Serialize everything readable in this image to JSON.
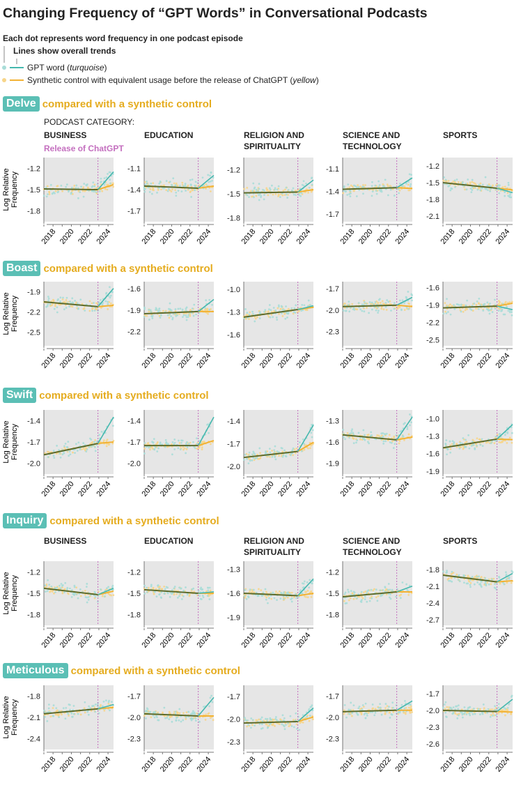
{
  "title": "Changing Frequency of “GPT Words” in Conversational Podcasts",
  "legend": {
    "dots": "Each dot represents word frequency in one podcast episode",
    "lines": "Lines show overall trends",
    "gpt": "GPT word (",
    "gpt_i": "turquoise",
    "control": "Synthetic control with equivalent usage before the release of ChatGPT (",
    "control_i": "yellow",
    "close": ")"
  },
  "category_heading": "PODCAST CATEGORY:",
  "release_label": "Release of ChatGPT",
  "compare_label": "compared with a synthetic control",
  "colors": {
    "gpt": "#45b8ae",
    "control": "#f2b233",
    "shared": "#5d6b2b",
    "release": "#c46fbf",
    "panel": "#e6e6e6"
  },
  "chart_data": {
    "type": "scatter",
    "ylabel": "Log Relative Frequency",
    "categories": [
      "BUSINESS",
      "EDUCATION",
      "RELIGION AND SPIRITUALITY",
      "SCIENCE AND TECHNOLOGY",
      "SPORTS"
    ],
    "xticks": [
      "2018",
      "2020",
      "2022",
      "2024"
    ],
    "xlim": [
      2017,
      2024.6
    ],
    "release_year": 2022.9,
    "rows": [
      {
        "word": "Delve",
        "panels": [
          {
            "yticks": [
              -1.2,
              -1.5,
              -1.8
            ],
            "ylim": [
              -1.95,
              -1.05
            ],
            "pre": [
              -1.49,
              -1.5
            ],
            "gpt_end": -1.25,
            "control_end": -1.43
          },
          {
            "yticks": [
              -1.1,
              -1.4,
              -1.7
            ],
            "ylim": [
              -1.85,
              -0.95
            ],
            "pre": [
              -1.35,
              -1.38
            ],
            "gpt_end": -1.2,
            "control_end": -1.35
          },
          {
            "yticks": [
              -1.2,
              -1.5,
              -1.8
            ],
            "ylim": [
              -1.85,
              -1.05
            ],
            "pre": [
              -1.49,
              -1.48
            ],
            "gpt_end": -1.33,
            "control_end": -1.45
          },
          {
            "yticks": [
              -1.1,
              -1.4,
              -1.7
            ],
            "ylim": [
              -1.8,
              -0.95
            ],
            "pre": [
              -1.37,
              -1.35
            ],
            "gpt_end": -1.22,
            "control_end": -1.36
          },
          {
            "yticks": [
              -1.2,
              -1.5,
              -1.8,
              -2.1
            ],
            "ylim": [
              -2.2,
              -1.05
            ],
            "pre": [
              -1.5,
              -1.6
            ],
            "gpt_end": -1.68,
            "control_end": -1.63
          }
        ]
      },
      {
        "word": "Boast",
        "panels": [
          {
            "yticks": [
              -1.9,
              -2.2,
              -2.5
            ],
            "ylim": [
              -2.7,
              -1.75
            ],
            "pre": [
              -2.05,
              -2.12
            ],
            "gpt_end": -1.85,
            "control_end": -2.1
          },
          {
            "yticks": [
              -1.6,
              -1.9,
              -2.2
            ],
            "ylim": [
              -2.4,
              -1.5
            ],
            "pre": [
              -1.95,
              -1.92
            ],
            "gpt_end": -1.75,
            "control_end": -1.92
          },
          {
            "yticks": [
              -1.0,
              -1.3,
              -1.6
            ],
            "ylim": [
              -1.75,
              -0.9
            ],
            "pre": [
              -1.37,
              -1.27
            ],
            "gpt_end": -1.22,
            "control_end": -1.24
          },
          {
            "yticks": [
              -1.7,
              -2.0,
              -2.3
            ],
            "ylim": [
              -2.5,
              -1.6
            ],
            "pre": [
              -1.95,
              -1.93
            ],
            "gpt_end": -1.82,
            "control_end": -1.95
          },
          {
            "yticks": [
              -1.6,
              -1.9,
              -2.2,
              -2.5
            ],
            "ylim": [
              -2.6,
              -1.5
            ],
            "pre": [
              -1.95,
              -1.92
            ],
            "gpt_end": -1.98,
            "control_end": -1.87
          }
        ]
      },
      {
        "word": "Swift",
        "panels": [
          {
            "yticks": [
              -1.4,
              -1.7,
              -2.0
            ],
            "ylim": [
              -2.15,
              -1.25
            ],
            "pre": [
              -1.88,
              -1.72
            ],
            "gpt_end": -1.35,
            "control_end": -1.7
          },
          {
            "yticks": [
              -1.4,
              -1.7,
              -2.0
            ],
            "ylim": [
              -2.15,
              -1.25
            ],
            "pre": [
              -1.75,
              -1.75
            ],
            "gpt_end": -1.35,
            "control_end": -1.68
          },
          {
            "yticks": [
              -1.4,
              -1.7,
              -2.0
            ],
            "ylim": [
              -2.1,
              -1.25
            ],
            "pre": [
              -1.88,
              -1.8
            ],
            "gpt_end": -1.45,
            "control_end": -1.68
          },
          {
            "yticks": [
              -1.3,
              -1.6,
              -1.9
            ],
            "ylim": [
              -2.05,
              -1.15
            ],
            "pre": [
              -1.5,
              -1.57
            ],
            "gpt_end": -1.25,
            "control_end": -1.53
          },
          {
            "yticks": [
              -1.0,
              -1.3,
              -1.6,
              -1.9
            ],
            "ylim": [
              -1.95,
              -0.85
            ],
            "pre": [
              -1.5,
              -1.35
            ],
            "gpt_end": -1.1,
            "control_end": -1.36
          }
        ]
      },
      {
        "word": "Inquiry",
        "panels": [
          {
            "yticks": [
              -1.2,
              -1.5,
              -1.8
            ],
            "ylim": [
              -1.95,
              -1.05
            ],
            "pre": [
              -1.43,
              -1.52
            ],
            "gpt_end": -1.43,
            "control_end": -1.47
          },
          {
            "yticks": [
              -1.2,
              -1.5,
              -1.8
            ],
            "ylim": [
              -1.95,
              -1.05
            ],
            "pre": [
              -1.45,
              -1.5
            ],
            "gpt_end": -1.48,
            "control_end": -1.5
          },
          {
            "yticks": [
              -1.3,
              -1.6,
              -1.9
            ],
            "ylim": [
              -2.0,
              -1.2
            ],
            "pre": [
              -1.6,
              -1.63
            ],
            "gpt_end": -1.42,
            "control_end": -1.6
          },
          {
            "yticks": [
              -1.2,
              -1.5,
              -1.8
            ],
            "ylim": [
              -1.95,
              -1.05
            ],
            "pre": [
              -1.55,
              -1.48
            ],
            "gpt_end": -1.4,
            "control_end": -1.48
          },
          {
            "yticks": [
              -1.8,
              -2.1,
              -2.4,
              -2.7
            ],
            "ylim": [
              -2.8,
              -1.65
            ],
            "pre": [
              -1.9,
              -2.02
            ],
            "gpt_end": -1.87,
            "control_end": -2.0
          }
        ]
      },
      {
        "word": "Meticulous",
        "panels": [
          {
            "yticks": [
              -1.8,
              -2.1,
              -2.4
            ],
            "ylim": [
              -2.55,
              -1.65
            ],
            "pre": [
              -2.05,
              -1.98
            ],
            "gpt_end": -1.92,
            "control_end": -1.96
          },
          {
            "yticks": [
              -1.7,
              -2.0,
              -2.3
            ],
            "ylim": [
              -2.45,
              -1.55
            ],
            "pre": [
              -1.95,
              -1.98
            ],
            "gpt_end": -1.72,
            "control_end": -1.98
          },
          {
            "yticks": [
              -1.7,
              -2.0,
              -2.3
            ],
            "ylim": [
              -2.4,
              -1.55
            ],
            "pre": [
              -2.05,
              -2.03
            ],
            "gpt_end": -1.85,
            "control_end": -1.97
          },
          {
            "yticks": [
              -1.7,
              -2.0,
              -2.3
            ],
            "ylim": [
              -2.45,
              -1.55
            ],
            "pre": [
              -1.92,
              -1.9
            ],
            "gpt_end": -1.77,
            "control_end": -1.9
          },
          {
            "yticks": [
              -1.7,
              -2.0,
              -2.3,
              -2.6
            ],
            "ylim": [
              -2.7,
              -1.55
            ],
            "pre": [
              -2.0,
              -2.02
            ],
            "gpt_end": -1.8,
            "control_end": -2.03
          }
        ]
      }
    ]
  }
}
